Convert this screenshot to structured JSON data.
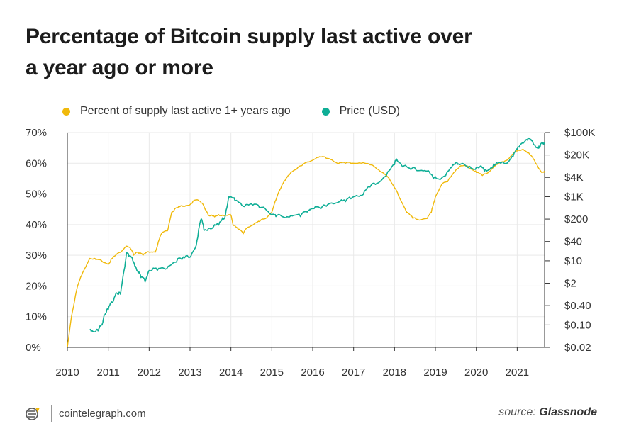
{
  "title_line1": "Percentage of Bitcoin supply last active over",
  "title_line2": "a year ago or more",
  "footer": {
    "site": "cointelegraph.com",
    "source_prefix": "source: ",
    "source_name": "Glassnode"
  },
  "colors": {
    "supply": "#f0b90b",
    "price": "#0fae96",
    "grid": "#e9e9e9",
    "axis": "#333333"
  },
  "chart_data": {
    "type": "line",
    "title": "Percentage of Bitcoin supply last active over a year ago or more",
    "xlim": [
      2010,
      2021.67
    ],
    "x_ticks": [
      "2010",
      "2011",
      "2012",
      "2013",
      "2014",
      "2015",
      "2016",
      "2017",
      "2018",
      "2019",
      "2020",
      "2021"
    ],
    "y_left": {
      "lim": [
        0,
        70
      ],
      "ticks": [
        "0%",
        "10%",
        "20%",
        "30%",
        "40%",
        "50%",
        "60%",
        "70%"
      ]
    },
    "y_right": {
      "scale": "log",
      "lim": [
        0.02,
        100000
      ],
      "ticks": [
        "$0.02",
        "$0.10",
        "$0.40",
        "$2",
        "$10",
        "$40",
        "$200",
        "$1K",
        "$4K",
        "$20K",
        "$100K"
      ]
    },
    "grid": true,
    "legend_position": "top",
    "series": [
      {
        "name": "Percent of supply last active 1+ years ago",
        "axis": "left",
        "points": [
          [
            2010.0,
            0
          ],
          [
            2010.1,
            10
          ],
          [
            2010.25,
            20
          ],
          [
            2010.4,
            25
          ],
          [
            2010.55,
            29
          ],
          [
            2010.7,
            28.5
          ],
          [
            2010.85,
            28
          ],
          [
            2011.0,
            27
          ],
          [
            2011.1,
            29
          ],
          [
            2011.3,
            31
          ],
          [
            2011.45,
            33
          ],
          [
            2011.55,
            32
          ],
          [
            2011.62,
            30
          ],
          [
            2011.7,
            31
          ],
          [
            2011.85,
            30
          ],
          [
            2012.0,
            31
          ],
          [
            2012.15,
            31
          ],
          [
            2012.3,
            37
          ],
          [
            2012.45,
            38
          ],
          [
            2012.55,
            44
          ],
          [
            2012.7,
            45.5
          ],
          [
            2012.85,
            46
          ],
          [
            2013.0,
            46.5
          ],
          [
            2013.15,
            48
          ],
          [
            2013.3,
            47
          ],
          [
            2013.45,
            43
          ],
          [
            2013.6,
            42.5
          ],
          [
            2013.75,
            43
          ],
          [
            2013.9,
            43
          ],
          [
            2014.0,
            43
          ],
          [
            2014.05,
            40
          ],
          [
            2014.15,
            39
          ],
          [
            2014.3,
            37
          ],
          [
            2014.4,
            39
          ],
          [
            2014.55,
            40
          ],
          [
            2014.7,
            41
          ],
          [
            2014.85,
            42
          ],
          [
            2015.0,
            44
          ],
          [
            2015.1,
            48
          ],
          [
            2015.25,
            53
          ],
          [
            2015.4,
            56
          ],
          [
            2015.6,
            58
          ],
          [
            2015.8,
            60
          ],
          [
            2016.0,
            61
          ],
          [
            2016.2,
            62
          ],
          [
            2016.4,
            61.5
          ],
          [
            2016.6,
            60
          ],
          [
            2016.8,
            60
          ],
          [
            2017.0,
            60
          ],
          [
            2017.2,
            60
          ],
          [
            2017.4,
            59.5
          ],
          [
            2017.6,
            58
          ],
          [
            2017.8,
            56
          ],
          [
            2018.0,
            52
          ],
          [
            2018.15,
            48
          ],
          [
            2018.3,
            44
          ],
          [
            2018.45,
            42
          ],
          [
            2018.6,
            41.5
          ],
          [
            2018.8,
            42
          ],
          [
            2018.9,
            44
          ],
          [
            2019.0,
            49
          ],
          [
            2019.15,
            53
          ],
          [
            2019.3,
            54
          ],
          [
            2019.45,
            57
          ],
          [
            2019.6,
            59
          ],
          [
            2019.75,
            59
          ],
          [
            2019.9,
            58
          ],
          [
            2020.0,
            57
          ],
          [
            2020.15,
            56
          ],
          [
            2020.3,
            57
          ],
          [
            2020.45,
            59
          ],
          [
            2020.6,
            60
          ],
          [
            2020.75,
            61
          ],
          [
            2020.9,
            63
          ],
          [
            2021.0,
            64
          ],
          [
            2021.15,
            64.5
          ],
          [
            2021.3,
            63
          ],
          [
            2021.45,
            60
          ],
          [
            2021.6,
            57
          ],
          [
            2021.67,
            57
          ]
        ]
      },
      {
        "name": "Price (USD)",
        "axis": "right",
        "points": [
          [
            2010.55,
            0.07
          ],
          [
            2010.65,
            0.06
          ],
          [
            2010.75,
            0.065
          ],
          [
            2010.85,
            0.1
          ],
          [
            2010.9,
            0.2
          ],
          [
            2011.0,
            0.3
          ],
          [
            2011.1,
            0.5
          ],
          [
            2011.2,
            1
          ],
          [
            2011.3,
            0.9
          ],
          [
            2011.4,
            6
          ],
          [
            2011.45,
            18
          ],
          [
            2011.5,
            14
          ],
          [
            2011.6,
            10
          ],
          [
            2011.7,
            5
          ],
          [
            2011.8,
            3
          ],
          [
            2011.9,
            2.2
          ],
          [
            2012.0,
            5
          ],
          [
            2012.2,
            5
          ],
          [
            2012.4,
            5.5
          ],
          [
            2012.6,
            9
          ],
          [
            2012.8,
            11
          ],
          [
            2013.0,
            13
          ],
          [
            2013.15,
            30
          ],
          [
            2013.27,
            200
          ],
          [
            2013.35,
            90
          ],
          [
            2013.5,
            100
          ],
          [
            2013.7,
            130
          ],
          [
            2013.85,
            220
          ],
          [
            2013.95,
            1000
          ],
          [
            2014.1,
            750
          ],
          [
            2014.3,
            500
          ],
          [
            2014.5,
            600
          ],
          [
            2014.7,
            450
          ],
          [
            2014.9,
            350
          ],
          [
            2015.0,
            270
          ],
          [
            2015.1,
            240
          ],
          [
            2015.3,
            230
          ],
          [
            2015.5,
            250
          ],
          [
            2015.7,
            240
          ],
          [
            2015.9,
            380
          ],
          [
            2016.0,
            430
          ],
          [
            2016.2,
            420
          ],
          [
            2016.4,
            600
          ],
          [
            2016.6,
            650
          ],
          [
            2016.8,
            700
          ],
          [
            2017.0,
            1000
          ],
          [
            2017.2,
            1100
          ],
          [
            2017.4,
            2000
          ],
          [
            2017.6,
            2700
          ],
          [
            2017.8,
            4500
          ],
          [
            2018.0,
            10000
          ],
          [
            2018.05,
            15000
          ],
          [
            2018.2,
            8500
          ],
          [
            2018.4,
            7000
          ],
          [
            2018.6,
            6500
          ],
          [
            2018.8,
            6300
          ],
          [
            2018.95,
            3600
          ],
          [
            2019.1,
            3500
          ],
          [
            2019.25,
            4500
          ],
          [
            2019.4,
            8000
          ],
          [
            2019.5,
            11500
          ],
          [
            2019.6,
            10000
          ],
          [
            2019.8,
            8000
          ],
          [
            2019.95,
            7200
          ],
          [
            2020.1,
            9000
          ],
          [
            2020.2,
            6000
          ],
          [
            2020.3,
            7000
          ],
          [
            2020.45,
            9500
          ],
          [
            2020.6,
            11000
          ],
          [
            2020.75,
            11000
          ],
          [
            2020.9,
            18000
          ],
          [
            2021.0,
            29000
          ],
          [
            2021.1,
            45000
          ],
          [
            2021.25,
            58000
          ],
          [
            2021.35,
            56000
          ],
          [
            2021.45,
            36000
          ],
          [
            2021.55,
            33000
          ],
          [
            2021.62,
            45000
          ],
          [
            2021.67,
            48000
          ]
        ]
      }
    ]
  }
}
